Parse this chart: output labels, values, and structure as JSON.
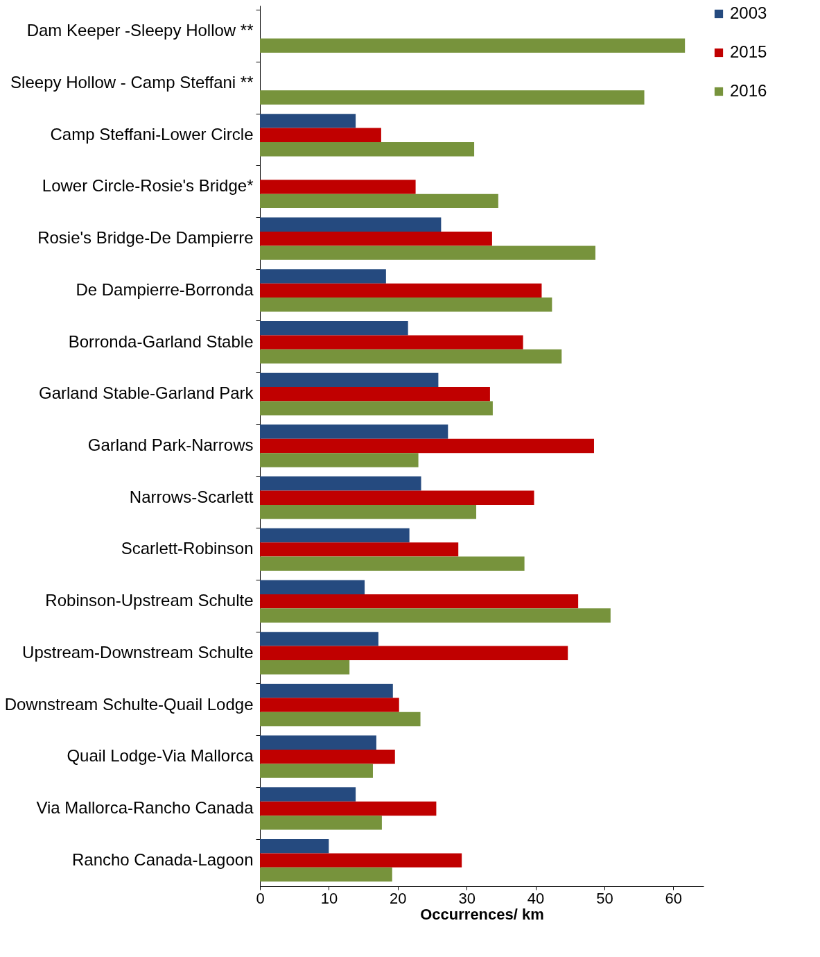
{
  "chart_data": {
    "type": "bar",
    "orientation": "horizontal",
    "xlabel": "Occurrences/  km",
    "categories": [
      "Dam Keeper -Sleepy Hollow **",
      "Sleepy Hollow - Camp Steffani **",
      "Camp Steffani-Lower Circle",
      "Lower Circle-Rosie's Bridge*",
      "Rosie's Bridge-De Dampierre",
      "De Dampierre-Borronda",
      "Borronda-Garland Stable",
      "Garland Stable-Garland Park",
      "Garland Park-Narrows",
      "Narrows-Scarlett",
      "Scarlett-Robinson",
      "Robinson-Upstream Schulte",
      "Upstream-Downstream Schulte",
      "Downstream Schulte-Quail Lodge",
      "Quail Lodge-Via Mallorca",
      "Via Mallorca-Rancho Canada",
      "Rancho Canada-Lagoon"
    ],
    "series": [
      {
        "name": "2003",
        "color": "#254a7f",
        "values": [
          null,
          null,
          13.9,
          null,
          26.3,
          18.3,
          21.5,
          25.9,
          27.3,
          23.4,
          21.7,
          15.2,
          17.2,
          19.3,
          16.9,
          13.9,
          10.0
        ]
      },
      {
        "name": "2015",
        "color": "#c00000",
        "values": [
          null,
          null,
          17.6,
          22.6,
          33.7,
          40.9,
          38.2,
          33.4,
          48.5,
          39.8,
          28.8,
          46.2,
          44.7,
          20.2,
          19.6,
          25.6,
          29.3
        ]
      },
      {
        "name": "2016",
        "color": "#77933c",
        "values": [
          61.7,
          55.8,
          31.1,
          34.6,
          48.7,
          42.4,
          43.8,
          33.8,
          23.0,
          31.4,
          38.4,
          50.9,
          13.0,
          23.3,
          16.4,
          17.7,
          19.2
        ]
      }
    ],
    "xlim": [
      0,
      64.4
    ],
    "xticks": [
      0,
      10,
      20,
      30,
      40,
      50,
      60
    ],
    "legend": "right",
    "grid": false
  }
}
